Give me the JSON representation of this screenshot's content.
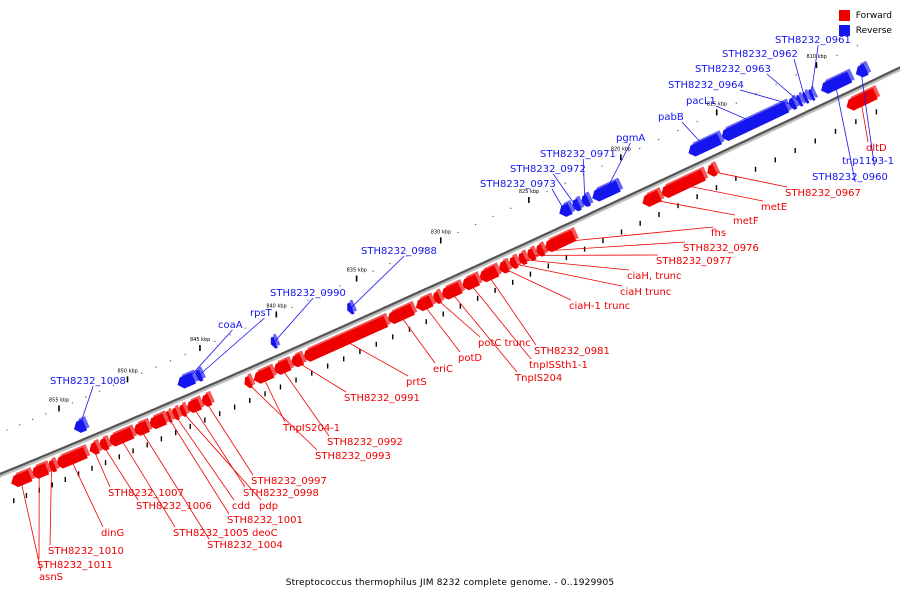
{
  "legend": {
    "forward_label": "Forward",
    "reverse_label": "Reverse",
    "forward_color": "#ee0000",
    "reverse_color": "#1515ee"
  },
  "caption": "Streptococcus thermophilus JIM 8232 complete genome. - 0..1929905",
  "axis": {
    "start_kbp": 808,
    "end_kbp": 857,
    "ticks": [
      "810 kbp",
      "815 kbp",
      "820 kbp",
      "825 kbp",
      "830 kbp",
      "835 kbp",
      "840 kbp",
      "845 kbp",
      "850 kbp",
      "855 kbp"
    ]
  },
  "forward_genes": [
    {
      "name": "dltD",
      "s": 808.2,
      "e": 809.6
    },
    {
      "name": "STH8232_0967",
      "s": 816.2,
      "e": 816.6
    },
    {
      "name": "metE",
      "s": 816.8,
      "e": 819.0
    },
    {
      "name": "metF",
      "s": 819.1,
      "e": 820.0
    },
    {
      "name": "fhs",
      "s": 823.7,
      "e": 825.3
    },
    {
      "name": "STH8232_0976",
      "s": 825.4,
      "e": 825.8
    },
    {
      "name": "STH8232_0977",
      "s": 825.9,
      "e": 826.3
    },
    {
      "name": "ciaH, trunc",
      "s": 826.4,
      "e": 826.8
    },
    {
      "name": "ciaH trunc",
      "s": 826.9,
      "e": 827.3
    },
    {
      "name": "ciaH-1 trunc",
      "s": 827.4,
      "e": 827.9
    },
    {
      "name": "STH8232_0981",
      "s": 828.0,
      "e": 829.0
    },
    {
      "name": "tnpISSth1-1",
      "s": 829.1,
      "e": 830.0
    },
    {
      "name": "TnpIS204",
      "s": 830.1,
      "e": 831.2
    },
    {
      "name": "potC trunc",
      "s": 831.3,
      "e": 831.7
    },
    {
      "name": "potD",
      "s": 831.8,
      "e": 832.7
    },
    {
      "name": "eriC",
      "s": 832.9,
      "e": 834.4
    },
    {
      "name": "prtS",
      "s": 834.5,
      "e": 839.6
    },
    {
      "name": "STH8232_0991",
      "s": 839.7,
      "e": 840.4
    },
    {
      "name": "STH8232_0992",
      "s": 840.5,
      "e": 841.5
    },
    {
      "name": "TnpIS204-1",
      "s": 841.6,
      "e": 842.8
    },
    {
      "name": "STH8232_0993",
      "s": 843.0,
      "e": 843.4
    },
    {
      "name": "STH8232_0997",
      "s": 845.7,
      "e": 846.3
    },
    {
      "name": "STH8232_0998",
      "s": 846.4,
      "e": 847.3
    },
    {
      "name": "pdp",
      "s": 847.4,
      "e": 847.8
    },
    {
      "name": "cdd",
      "s": 847.9,
      "e": 848.3
    },
    {
      "name": "STH8232_1001",
      "s": 848.4,
      "e": 848.7
    },
    {
      "name": "deoC",
      "s": 848.8,
      "e": 849.9
    },
    {
      "name": "STH8232_1004",
      "s": 850.0,
      "e": 851.0
    },
    {
      "name": "STH8232_1005",
      "s": 851.1,
      "e": 852.8
    },
    {
      "name": "STH8232_1006",
      "s": 852.9,
      "e": 853.5
    },
    {
      "name": "STH8232_1007",
      "s": 853.6,
      "e": 854.2
    },
    {
      "name": "dinG",
      "s": 854.5,
      "e": 856.7
    },
    {
      "name": "STH8232_1010",
      "s": 856.8,
      "e": 857.3
    },
    {
      "name": "STH8232_1011",
      "s": 857.4,
      "e": 858.6
    },
    {
      "name": "asnS",
      "s": 858.7,
      "e": 860.2
    }
  ],
  "reverse_genes": [
    {
      "name": "STH8232_0961",
      "s": 810.7,
      "e": 810.9
    },
    {
      "name": "STH8232_0962",
      "s": 811.0,
      "e": 811.2
    },
    {
      "name": "STH8232_0963",
      "s": 811.3,
      "e": 811.5
    },
    {
      "name": "STH8232_0964",
      "s": 811.6,
      "e": 811.9
    },
    {
      "name": "STH8232_0960",
      "s": 808.9,
      "e": 810.3
    },
    {
      "name": "tnp1193-1",
      "s": 808.1,
      "e": 808.6
    },
    {
      "name": "pacL1",
      "s": 812.0,
      "e": 815.3
    },
    {
      "name": "pabB",
      "s": 815.4,
      "e": 817.0
    },
    {
      "name": "pgmA",
      "s": 820.7,
      "e": 822.1
    },
    {
      "name": "STH8232_0971",
      "s": 822.3,
      "e": 822.7
    },
    {
      "name": "STH8232_0972",
      "s": 822.8,
      "e": 823.2
    },
    {
      "name": "STH8232_0973",
      "s": 823.3,
      "e": 823.9
    },
    {
      "name": "STH8232_0988",
      "s": 835.9,
      "e": 836.2
    },
    {
      "name": "STH8232_0990",
      "s": 840.7,
      "e": 841.0
    },
    {
      "name": "rpsT",
      "s": 845.6,
      "e": 846.0
    },
    {
      "name": "coaA",
      "s": 846.1,
      "e": 847.2
    },
    {
      "name": "STH8232_1008",
      "s": 853.8,
      "e": 854.6
    }
  ],
  "labels": {
    "forward": [
      "dltD",
      "STH8232_0967",
      "metE",
      "metF",
      "fhs",
      "STH8232_0976",
      "STH8232_0977",
      "ciaH, trunc",
      "ciaH trunc",
      "ciaH-1 trunc",
      "STH8232_0981",
      "tnpISSth1-1",
      "TnpIS204",
      "potC trunc",
      "potD",
      "eriC",
      "prtS",
      "STH8232_0991",
      "TnpIS204-1",
      "STH8232_0992",
      "STH8232_0993",
      "STH8232_0997",
      "STH8232_0998",
      "pdp",
      "cdd",
      "STH8232_1001",
      "STH8232_1005 deoC",
      "STH8232_1004",
      "STH8232_1006",
      "STH8232_1007",
      "dinG",
      "STH8232_1010",
      "STH8232_1011",
      "asnS"
    ],
    "reverse": [
      "STH8232_0961",
      "STH8232_0962",
      "STH8232_0963",
      "STH8232_0964",
      "pacL1",
      "pabB",
      "tnp1193-1",
      "STH8232_0960",
      "pgmA",
      "STH8232_0971",
      "STH8232_0972",
      "STH8232_0973",
      "STH8232_0988",
      "STH8232_0990",
      "rpsT",
      "coaA",
      "STH8232_1008"
    ]
  }
}
